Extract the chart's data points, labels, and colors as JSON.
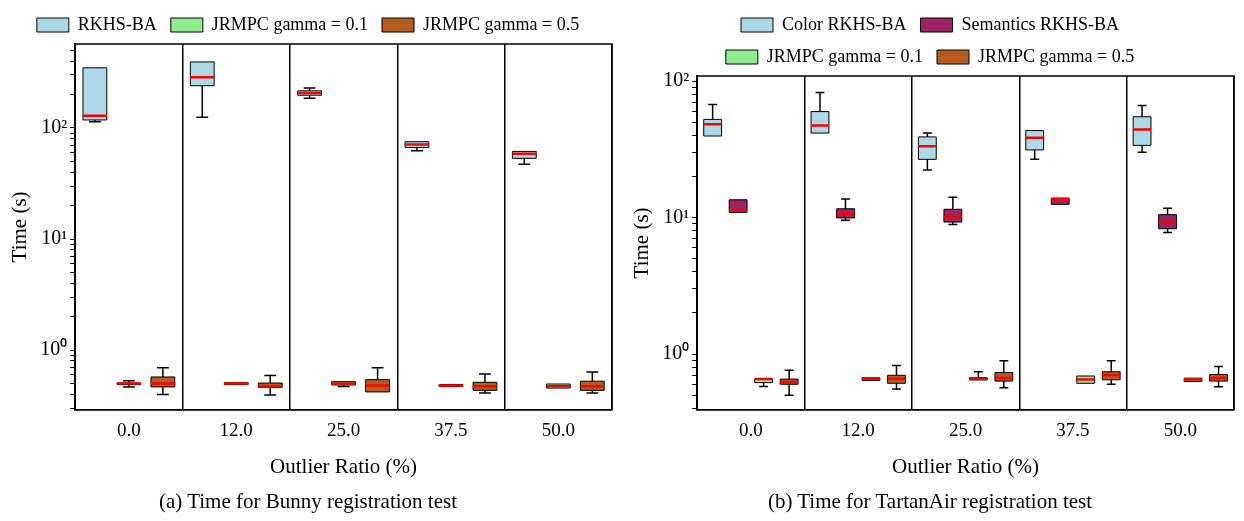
{
  "chart_data": [
    {
      "type": "box",
      "title": "(a) Time for Bunny registration test",
      "xlabel": "Outlier Ratio (%)",
      "ylabel": "Time (s)",
      "categories": [
        "0.0",
        "12.0",
        "25.0",
        "37.5",
        "50.0"
      ],
      "series": [
        {
          "name": "RKHS-BA",
          "color": "#add8e6",
          "boxes": [
            {
              "low": 114,
              "q1": 118,
              "median": 129,
              "q3": 348,
              "high": 348
            },
            {
              "low": 125,
              "q1": 240,
              "median": 286,
              "q3": 393,
              "high": 393
            },
            {
              "low": 185,
              "q1": 197,
              "median": 206,
              "q3": 216,
              "high": 229
            },
            {
              "low": 62.5,
              "q1": 66.7,
              "median": 71,
              "q3": 75.2,
              "high": 75.2
            },
            {
              "low": 47,
              "q1": 53.3,
              "median": 58.7,
              "q3": 61.5,
              "high": 61.5
            }
          ]
        },
        {
          "name": "JRMPC gamma = 0.1",
          "color": "#90ee90",
          "boxes": [
            {
              "low": 0.466,
              "q1": 0.49,
              "median": 0.5,
              "q3": 0.505,
              "high": 0.53
            },
            {
              "low": 0.49,
              "q1": 0.49,
              "median": 0.5,
              "q3": 0.51,
              "high": 0.51
            },
            {
              "low": 0.47,
              "q1": 0.485,
              "median": 0.5,
              "q3": 0.52,
              "high": 0.52
            },
            {
              "low": 0.47,
              "q1": 0.47,
              "median": 0.48,
              "q3": 0.49,
              "high": 0.49
            },
            {
              "low": 0.455,
              "q1": 0.455,
              "median": 0.473,
              "q3": 0.495,
              "high": 0.495
            }
          ]
        },
        {
          "name": "JRMPC gamma = 0.5",
          "color": "#b35c1e",
          "boxes": [
            {
              "low": 0.398,
              "q1": 0.466,
              "median": 0.5,
              "q3": 0.573,
              "high": 0.693
            },
            {
              "low": 0.395,
              "q1": 0.46,
              "median": 0.47,
              "q3": 0.505,
              "high": 0.592
            },
            {
              "low": 0.42,
              "q1": 0.42,
              "median": 0.48,
              "q3": 0.542,
              "high": 0.693
            },
            {
              "low": 0.41,
              "q1": 0.434,
              "median": 0.473,
              "q3": 0.513,
              "high": 0.61
            },
            {
              "low": 0.41,
              "q1": 0.434,
              "median": 0.473,
              "q3": 0.525,
              "high": 0.635
            }
          ]
        }
      ],
      "log": true,
      "ylim": [
        0.29,
        570
      ],
      "yticks": [
        {
          "value": 0.3,
          "label": null
        },
        {
          "value": 0.4,
          "label": null
        },
        {
          "value": 0.5,
          "label": null
        },
        {
          "value": 0.6,
          "label": null
        },
        {
          "value": 0.7,
          "label": null
        },
        {
          "value": 0.8,
          "label": null
        },
        {
          "value": 0.9,
          "label": null
        },
        {
          "value": 1,
          "label": "10⁰"
        },
        {
          "value": 2,
          "label": null
        },
        {
          "value": 3,
          "label": null
        },
        {
          "value": 4,
          "label": null
        },
        {
          "value": 5,
          "label": null
        },
        {
          "value": 6,
          "label": null
        },
        {
          "value": 7,
          "label": null
        },
        {
          "value": 8,
          "label": null
        },
        {
          "value": 9,
          "label": null
        },
        {
          "value": 10,
          "label": "10¹"
        },
        {
          "value": 20,
          "label": null
        },
        {
          "value": 30,
          "label": null
        },
        {
          "value": 40,
          "label": null
        },
        {
          "value": 50,
          "label": null
        },
        {
          "value": 60,
          "label": null
        },
        {
          "value": 70,
          "label": null
        },
        {
          "value": 80,
          "label": null
        },
        {
          "value": 90,
          "label": null
        },
        {
          "value": 100,
          "label": "10²"
        },
        {
          "value": 200,
          "label": null
        },
        {
          "value": 300,
          "label": null
        },
        {
          "value": 400,
          "label": null
        },
        {
          "value": 500,
          "label": null
        }
      ],
      "legend": "top",
      "grid": "x"
    },
    {
      "type": "box",
      "title": "(b) Time for TartanAir registration test",
      "xlabel": "Outlier Ratio (%)",
      "ylabel": "Time (s)",
      "categories": [
        "0.0",
        "12.0",
        "25.0",
        "37.5",
        "50.0"
      ],
      "series": [
        {
          "name": "Color RKHS-BA",
          "color": "#add8e6",
          "boxes": [
            {
              "low": 39.6,
              "q1": 39.6,
              "median": 48.2,
              "q3": 52.4,
              "high": 67.4
            },
            {
              "low": 41.6,
              "q1": 41.6,
              "median": 47.3,
              "q3": 59.8,
              "high": 82.4
            },
            {
              "low": 22.3,
              "q1": 26.7,
              "median": 33.3,
              "q3": 39,
              "high": 41.6
            },
            {
              "low": 26.7,
              "q1": 31.3,
              "median": 38.5,
              "q3": 43.4,
              "high": 43.4
            },
            {
              "low": 30.1,
              "q1": 33.8,
              "median": 44.2,
              "q3": 54.8,
              "high": 66.2
            }
          ]
        },
        {
          "name": "Semantics RKHS-BA",
          "color": "#9c2462",
          "boxes": [
            {
              "low": 10.9,
              "q1": 10.9,
              "median": 11.3,
              "q3": 13.5,
              "high": 13.5
            },
            {
              "low": 9.55,
              "q1": 9.94,
              "median": 10.7,
              "q3": 11.6,
              "high": 13.7
            },
            {
              "low": 8.89,
              "q1": 9.27,
              "median": 10.1,
              "q3": 11.5,
              "high": 14.1
            },
            {
              "low": 12.5,
              "q1": 12.5,
              "median": 13.6,
              "q3": 13.9,
              "high": 13.9
            },
            {
              "low": 7.76,
              "q1": 8.28,
              "median": 9.2,
              "q3": 10.5,
              "high": 11.7
            }
          ]
        },
        {
          "name": "JRMPC gamma = 0.1",
          "color": "#90ee90",
          "boxes": [
            {
              "low": 0.578,
              "q1": 0.617,
              "median": 0.655,
              "q3": 0.658,
              "high": 0.658
            },
            {
              "low": 0.64,
              "q1": 0.64,
              "median": 0.655,
              "q3": 0.67,
              "high": 0.67
            },
            {
              "low": 0.645,
              "q1": 0.645,
              "median": 0.66,
              "q3": 0.67,
              "high": 0.741
            },
            {
              "low": 0.61,
              "q1": 0.61,
              "median": 0.65,
              "q3": 0.69,
              "high": 0.69
            },
            {
              "low": 0.63,
              "q1": 0.63,
              "median": 0.65,
              "q3": 0.665,
              "high": 0.665
            }
          ]
        },
        {
          "name": "JRMPC gamma = 0.5",
          "color": "#b35c1e",
          "boxes": [
            {
              "low": 0.499,
              "q1": 0.6,
              "median": 0.624,
              "q3": 0.655,
              "high": 0.759
            },
            {
              "low": 0.555,
              "q1": 0.61,
              "median": 0.658,
              "q3": 0.698,
              "high": 0.824
            },
            {
              "low": 0.565,
              "q1": 0.633,
              "median": 0.668,
              "q3": 0.731,
              "high": 0.894
            },
            {
              "low": 0.6,
              "q1": 0.647,
              "median": 0.698,
              "q3": 0.741,
              "high": 0.894
            },
            {
              "low": 0.576,
              "q1": 0.633,
              "median": 0.668,
              "q3": 0.707,
              "high": 0.81
            }
          ]
        }
      ],
      "log": true,
      "ylim": [
        0.39,
        109
      ],
      "yticks": [
        {
          "value": 0.4,
          "label": null
        },
        {
          "value": 0.5,
          "label": null
        },
        {
          "value": 0.6,
          "label": null
        },
        {
          "value": 0.7,
          "label": null
        },
        {
          "value": 0.8,
          "label": null
        },
        {
          "value": 0.9,
          "label": null
        },
        {
          "value": 1,
          "label": "10⁰"
        },
        {
          "value": 2,
          "label": null
        },
        {
          "value": 3,
          "label": null
        },
        {
          "value": 4,
          "label": null
        },
        {
          "value": 5,
          "label": null
        },
        {
          "value": 6,
          "label": null
        },
        {
          "value": 7,
          "label": null
        },
        {
          "value": 8,
          "label": null
        },
        {
          "value": 9,
          "label": null
        },
        {
          "value": 10,
          "label": "10¹"
        },
        {
          "value": 20,
          "label": null
        },
        {
          "value": 30,
          "label": null
        },
        {
          "value": 40,
          "label": null
        },
        {
          "value": 50,
          "label": null
        },
        {
          "value": 60,
          "label": null
        },
        {
          "value": 70,
          "label": null
        },
        {
          "value": 80,
          "label": null
        },
        {
          "value": 90,
          "label": null
        },
        {
          "value": 100,
          "label": "10²"
        }
      ],
      "legend": "top",
      "grid": "x"
    }
  ]
}
